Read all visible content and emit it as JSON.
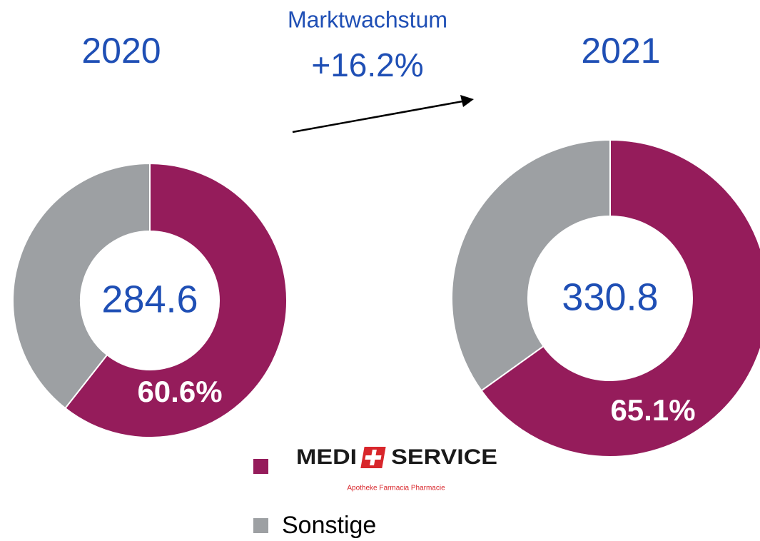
{
  "annotation": {
    "title": "Marktwachstum",
    "value": "+16.2%"
  },
  "legend_tagline": "Apotheke Farmacia Pharmacie",
  "chart_data": [
    {
      "type": "pie",
      "title": "2020",
      "center_label": 284.6,
      "categories": [
        "MEDI SERVICE",
        "Sonstige"
      ],
      "values": [
        60.6,
        39.4
      ],
      "value_labels": [
        "60.6%",
        null
      ],
      "colors": [
        "#951c5b",
        "#9da0a3"
      ]
    },
    {
      "type": "pie",
      "title": "2021",
      "center_label": 330.8,
      "categories": [
        "MEDI SERVICE",
        "Sonstige"
      ],
      "values": [
        65.1,
        34.9
      ],
      "value_labels": [
        "65.1%",
        null
      ],
      "colors": [
        "#951c5b",
        "#9da0a3"
      ]
    }
  ]
}
